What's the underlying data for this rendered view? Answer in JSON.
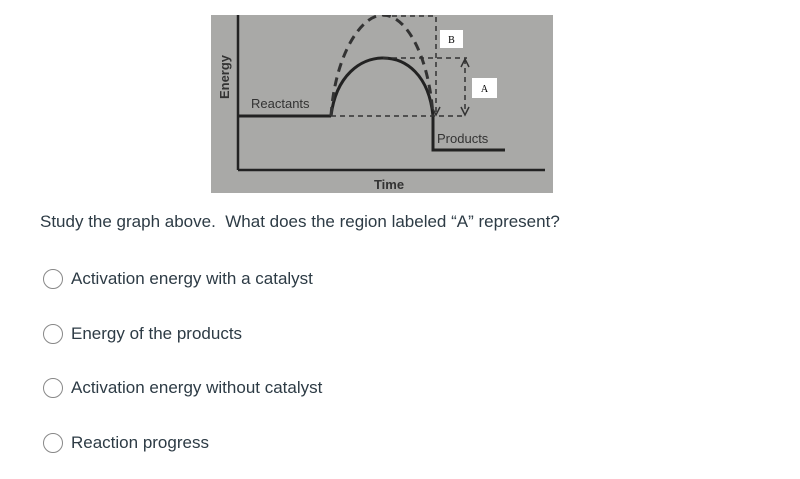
{
  "graph": {
    "y_axis_label": "Energy",
    "x_axis_label": "Time",
    "reactants_label": "Reactants",
    "products_label": "Products",
    "region_b_label": "B",
    "region_a_label": "A"
  },
  "question": "Study the graph above.  What does the region labeled “A” represent?",
  "options": [
    "Activation energy with a catalyst",
    "Energy of the products",
    "Activation energy without catalyst",
    "Reaction progress"
  ]
}
